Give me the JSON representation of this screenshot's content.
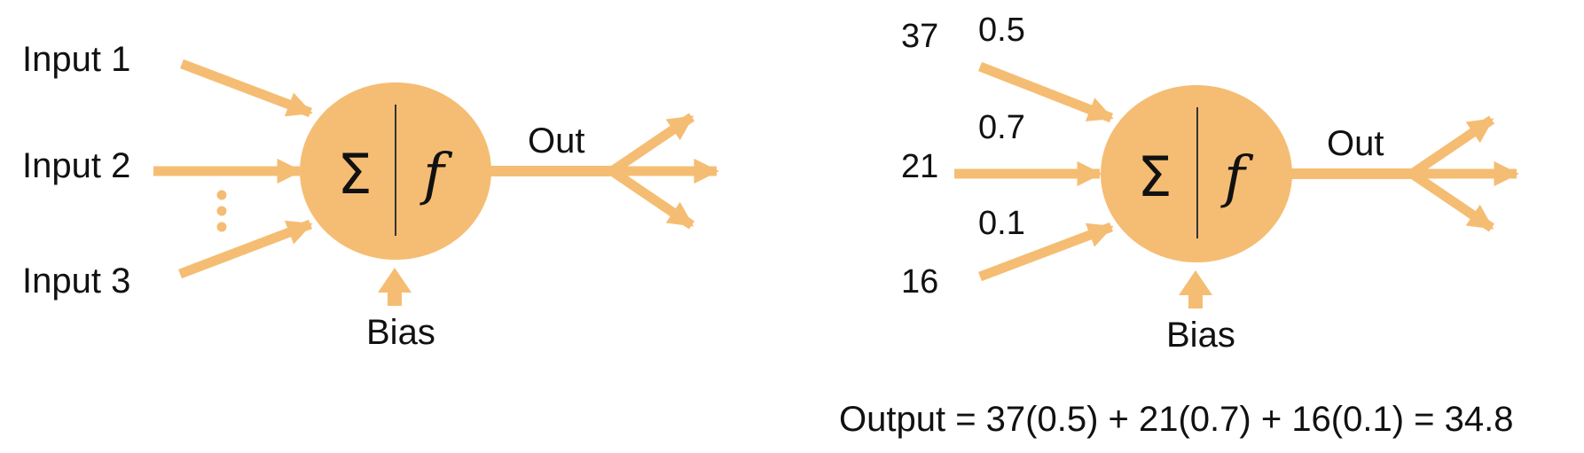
{
  "colors": {
    "accent": "#f5bd73",
    "text": "#111111",
    "divider": "#333333"
  },
  "neuron_generic": {
    "inputs": [
      "Input 1",
      "Input 2",
      "Input 3"
    ],
    "sum_symbol": "Σ",
    "activation_symbol": "f",
    "output_label": "Out",
    "bias_label": "Bias"
  },
  "neuron_example": {
    "inputs": [
      {
        "value": "37",
        "weight": "0.5"
      },
      {
        "value": "21",
        "weight": "0.7"
      },
      {
        "value": "16",
        "weight": "0.1"
      }
    ],
    "sum_symbol": "Σ",
    "activation_symbol": "f",
    "output_label": "Out",
    "bias_label": "Bias",
    "formula": "Output = 37(0.5) + 21(0.7) + 16(0.1) = 34.8"
  }
}
